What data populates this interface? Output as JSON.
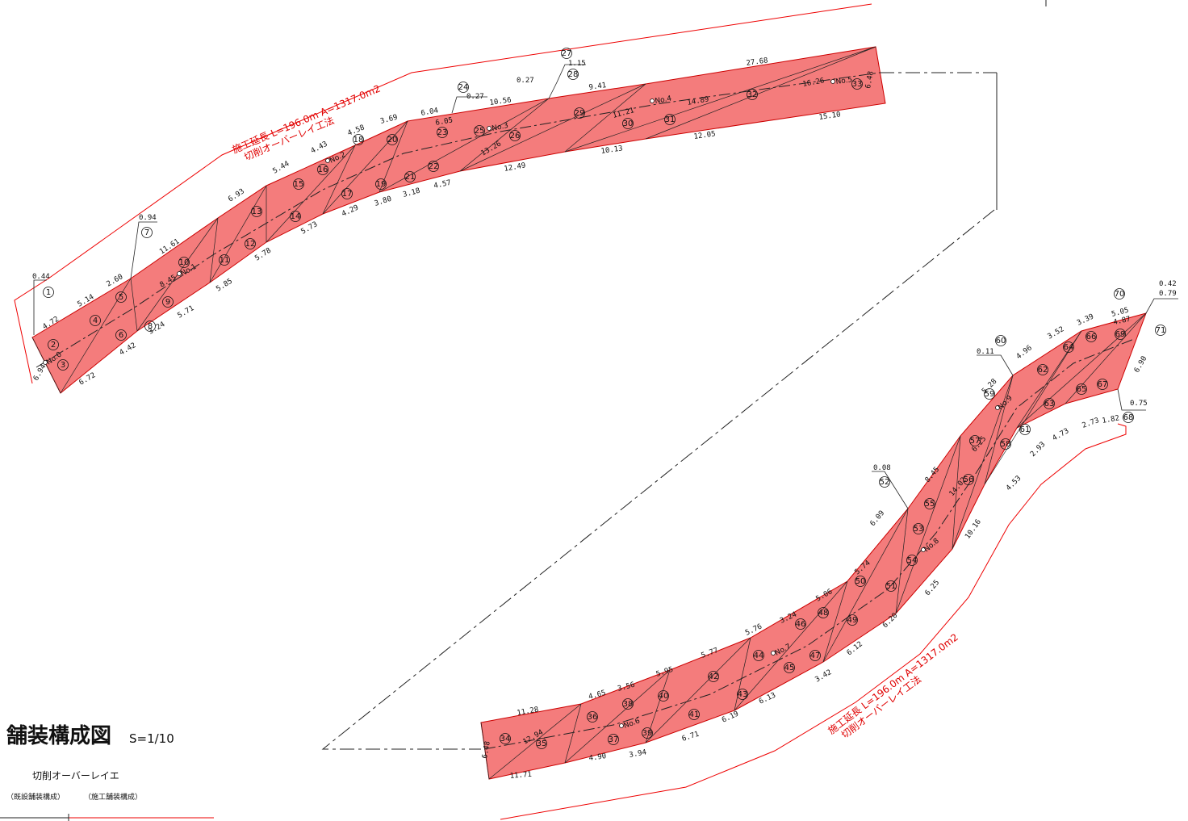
{
  "title": "舗装構成図",
  "scale": "S=1/10",
  "legend": {
    "method": "切削オーバーレイエ",
    "existing": "（既設舗装構成）",
    "construction": "（施工舗装構成）"
  },
  "annotations": [
    {
      "line1": "施工延長 L=196.0m A=1317.0m2",
      "line2": "切削オーバーレイ工法"
    },
    {
      "line1": "施工延長 L=196.0m A=1317.0m2",
      "line2": "切削オーバーレイ工法"
    }
  ],
  "areas": [
    1,
    2,
    3,
    4,
    5,
    6,
    7,
    8,
    9,
    10,
    11,
    12,
    13,
    14,
    15,
    16,
    17,
    18,
    19,
    20,
    21,
    22,
    23,
    24,
    25,
    26,
    27,
    28,
    29,
    30,
    31,
    32,
    33,
    34,
    35,
    36,
    37,
    38,
    39,
    40,
    41,
    42,
    43,
    44,
    45,
    46,
    47,
    48,
    49,
    50,
    51,
    52,
    53,
    54,
    55,
    56,
    57,
    58,
    59,
    60,
    61,
    62,
    63,
    64,
    65,
    66,
    67,
    68,
    69,
    70,
    71
  ],
  "stations": [
    "No.0",
    "No.1",
    "No.2",
    "No.3",
    "No.4",
    "No.5",
    "No.6",
    "No.7",
    "No.8",
    "No.9"
  ],
  "dimensions": [
    "0.44",
    "4.72",
    "5.14",
    "2.60",
    "0.94",
    "11.61",
    "6.93",
    "5.44",
    "4.43",
    "4.58",
    "3.69",
    "6.04",
    "6.05",
    "0.27",
    "10.56",
    "0.27",
    "1.15",
    "9.41",
    "27.68",
    "6.48",
    "6.94",
    "6.72",
    "4.42",
    "3.24",
    "5.71",
    "5.85",
    "5.78",
    "5.73",
    "4.29",
    "3.80",
    "3.18",
    "4.57",
    "12.49",
    "10.13",
    "12.05",
    "15.10",
    "13.26",
    "14.89",
    "16.26",
    "11.21",
    "8.45",
    "11.28",
    "4.65",
    "3.56",
    "5.95",
    "5.77",
    "5.76",
    "3.24",
    "5.06",
    "5.74",
    "6.09",
    "8.45",
    "6.25",
    "5.28",
    "0.11",
    "4.96",
    "3.52",
    "3.39",
    "5.05",
    "4.87",
    "0.08",
    "0.42",
    "0.79",
    "0.75",
    "6.90",
    "11.71",
    "4.90",
    "3.94",
    "6.71",
    "6.19",
    "6.13",
    "3.42",
    "6.12",
    "6.20",
    "6.25",
    "10.16",
    "4.53",
    "2.93",
    "4.73",
    "2.73",
    "1.82",
    "6.48",
    "12.94",
    "14.02"
  ]
}
